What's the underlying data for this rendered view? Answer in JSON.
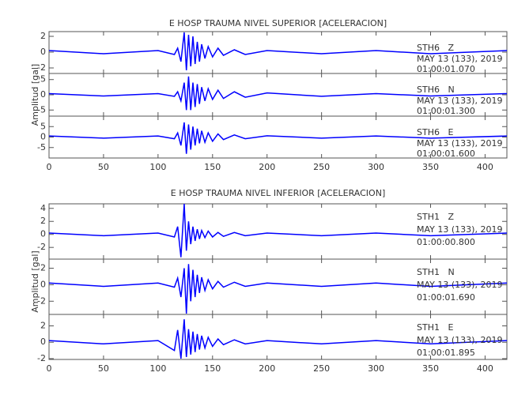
{
  "chart_data": [
    {
      "type": "line",
      "title": "E HOSP TRAUMA NIVEL SUPERIOR [ACELERACION]",
      "y_label": "Amplitud [gal]",
      "xlim": [
        0,
        420
      ],
      "xticks": [
        0,
        50,
        100,
        150,
        200,
        250,
        300,
        350,
        400
      ],
      "x": [
        0,
        50,
        100,
        115,
        118,
        121,
        124,
        126,
        128,
        130,
        132,
        134,
        136,
        138,
        140,
        143,
        146,
        150,
        155,
        160,
        170,
        180,
        200,
        250,
        300,
        350,
        420
      ],
      "series": [
        {
          "name": "STH6   Z",
          "info": [
            "MAY 13 (133), 2019",
            "01:00:01.070"
          ],
          "color": "#0000ff",
          "ylim": [
            -2.7,
            2.6
          ],
          "yticks": [
            2,
            0,
            -2
          ],
          "values": [
            0.2,
            -0.2,
            0.2,
            -0.3,
            0.5,
            -1.2,
            2.5,
            -2.3,
            2.2,
            -1.8,
            2.0,
            -1.5,
            1.3,
            -1.2,
            1.0,
            -0.8,
            0.7,
            -0.6,
            0.5,
            -0.4,
            0.3,
            -0.3,
            0.2,
            -0.2,
            0.2,
            -0.2,
            0.2
          ]
        },
        {
          "name": "STH6   N",
          "info": [
            "MAY 13 (133), 2019",
            "01:00:01.300"
          ],
          "color": "#0000ff",
          "ylim": [
            -7,
            7
          ],
          "yticks": [
            5,
            0,
            -5
          ],
          "values": [
            0.4,
            -0.4,
            0.4,
            -0.5,
            1,
            -2,
            4,
            -5,
            6,
            -5,
            4,
            -4,
            3.5,
            -3,
            2.5,
            -2,
            2,
            -1.5,
            1.5,
            -1.2,
            1,
            -0.8,
            0.6,
            -0.5,
            0.4,
            -0.4,
            0.4
          ]
        },
        {
          "name": "STH6   E",
          "info": [
            "MAY 13 (133), 2019",
            "01:00:01.600"
          ],
          "color": "#0000ff",
          "ylim": [
            -10,
            10
          ],
          "yticks": [
            5,
            0,
            -5
          ],
          "values": [
            0.5,
            -0.5,
            0.5,
            -0.8,
            2,
            -4,
            7,
            -8,
            6,
            -6,
            5,
            -4,
            4,
            -3,
            3,
            -2.5,
            2,
            -2,
            1.5,
            -1.2,
            1,
            -0.8,
            0.6,
            -0.5,
            0.5,
            -0.5,
            0.5
          ]
        }
      ]
    },
    {
      "type": "line",
      "title": "E HOSP TRAUMA NIVEL INFERIOR [ACELERACION]",
      "y_label": "Amplitud [gal]",
      "xlim": [
        0,
        420
      ],
      "xticks": [
        0,
        50,
        100,
        150,
        200,
        250,
        300,
        350,
        400
      ],
      "x": [
        0,
        50,
        100,
        115,
        118,
        121,
        124,
        126,
        128,
        130,
        132,
        134,
        136,
        138,
        140,
        143,
        146,
        150,
        155,
        160,
        170,
        180,
        200,
        250,
        300,
        350,
        420
      ],
      "series": [
        {
          "name": "STH1   Z",
          "info": [
            "MAY 13 (133), 2019",
            "01:00:00.800"
          ],
          "color": "#0000ff",
          "ylim": [
            -3.8,
            4.7
          ],
          "yticks": [
            4,
            2,
            0,
            -2
          ],
          "values": [
            0.2,
            -0.2,
            0.2,
            -0.4,
            1.2,
            -3.5,
            4.7,
            -2.5,
            2,
            -1.5,
            1.2,
            -1,
            0.8,
            -0.7,
            0.6,
            -0.5,
            0.5,
            -0.4,
            0.3,
            -0.3,
            0.3,
            -0.2,
            0.2,
            -0.2,
            0.2,
            -0.2,
            0.2
          ]
        },
        {
          "name": "STH1   N",
          "info": [
            "MAY 13 (133), 2019",
            "01:00:01.690"
          ],
          "color": "#0000ff",
          "ylim": [
            -3.6,
            3.1
          ],
          "yticks": [
            2,
            0,
            -2
          ],
          "values": [
            0.2,
            -0.2,
            0.2,
            -0.3,
            0.8,
            -1.5,
            2,
            -3.5,
            2.5,
            -2,
            1.8,
            -1.5,
            1.2,
            -1,
            0.9,
            -0.7,
            0.6,
            -0.5,
            0.4,
            -0.3,
            0.3,
            -0.2,
            0.2,
            -0.2,
            0.2,
            -0.2,
            0.2
          ]
        },
        {
          "name": "STH1   E",
          "info": [
            "MAY 13 (133), 2019",
            "01:00:01.895"
          ],
          "color": "#0000ff",
          "ylim": [
            -2.1,
            3.4
          ],
          "yticks": [
            2,
            0,
            -2
          ],
          "values": [
            0.2,
            -0.2,
            0.2,
            -1,
            1.5,
            -2,
            2.8,
            -1.8,
            1.6,
            -1.5,
            1.3,
            -1.2,
            1,
            -0.9,
            0.8,
            -0.7,
            0.6,
            -0.5,
            0.4,
            -0.3,
            0.3,
            -0.2,
            0.2,
            -0.2,
            0.2,
            -0.2,
            0.2
          ]
        }
      ]
    }
  ]
}
